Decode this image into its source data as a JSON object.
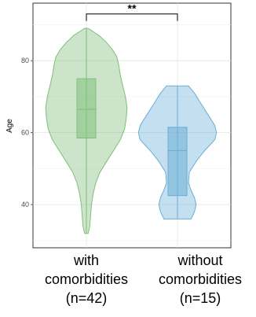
{
  "chart_data": {
    "type": "violin",
    "title": "",
    "xlabel": "",
    "ylabel": "Age",
    "ylim": [
      28,
      96
    ],
    "yticks": [
      40,
      60,
      80
    ],
    "grid": true,
    "legend": "none",
    "categories": [
      {
        "label_lines": [
          "with",
          "comorbidities",
          "(n=42)"
        ],
        "color": "#7fbf7b",
        "min": 32,
        "max": 89,
        "box": {
          "q1": 58.5,
          "median": 66.5,
          "q3": 75
        },
        "density": [
          [
            32,
            2
          ],
          [
            34,
            4
          ],
          [
            37,
            5
          ],
          [
            40,
            6
          ],
          [
            43,
            8
          ],
          [
            46,
            11
          ],
          [
            49,
            16
          ],
          [
            52,
            24
          ],
          [
            55,
            32
          ],
          [
            58,
            40
          ],
          [
            61,
            45
          ],
          [
            64,
            47
          ],
          [
            67,
            48
          ],
          [
            70,
            46
          ],
          [
            73,
            43
          ],
          [
            76,
            40
          ],
          [
            79,
            38
          ],
          [
            81,
            36
          ],
          [
            83,
            31
          ],
          [
            85,
            24
          ],
          [
            87,
            15
          ],
          [
            89,
            2
          ]
        ]
      },
      {
        "label_lines": [
          "without",
          "comorbidities",
          "(n=15)"
        ],
        "color": "#6baed6",
        "min": 36,
        "max": 73,
        "box": {
          "q1": 42.5,
          "median": 55,
          "q3": 61.5
        },
        "density": [
          [
            36,
            16
          ],
          [
            38,
            20
          ],
          [
            40,
            22
          ],
          [
            42,
            20
          ],
          [
            44,
            16
          ],
          [
            46,
            13
          ],
          [
            49,
            14
          ],
          [
            52,
            22
          ],
          [
            55,
            32
          ],
          [
            58,
            44
          ],
          [
            60,
            46
          ],
          [
            62,
            44
          ],
          [
            65,
            36
          ],
          [
            68,
            28
          ],
          [
            71,
            20
          ],
          [
            73,
            13
          ]
        ]
      }
    ],
    "significance": {
      "label": "**",
      "between": [
        0,
        1
      ],
      "y": 93
    }
  }
}
